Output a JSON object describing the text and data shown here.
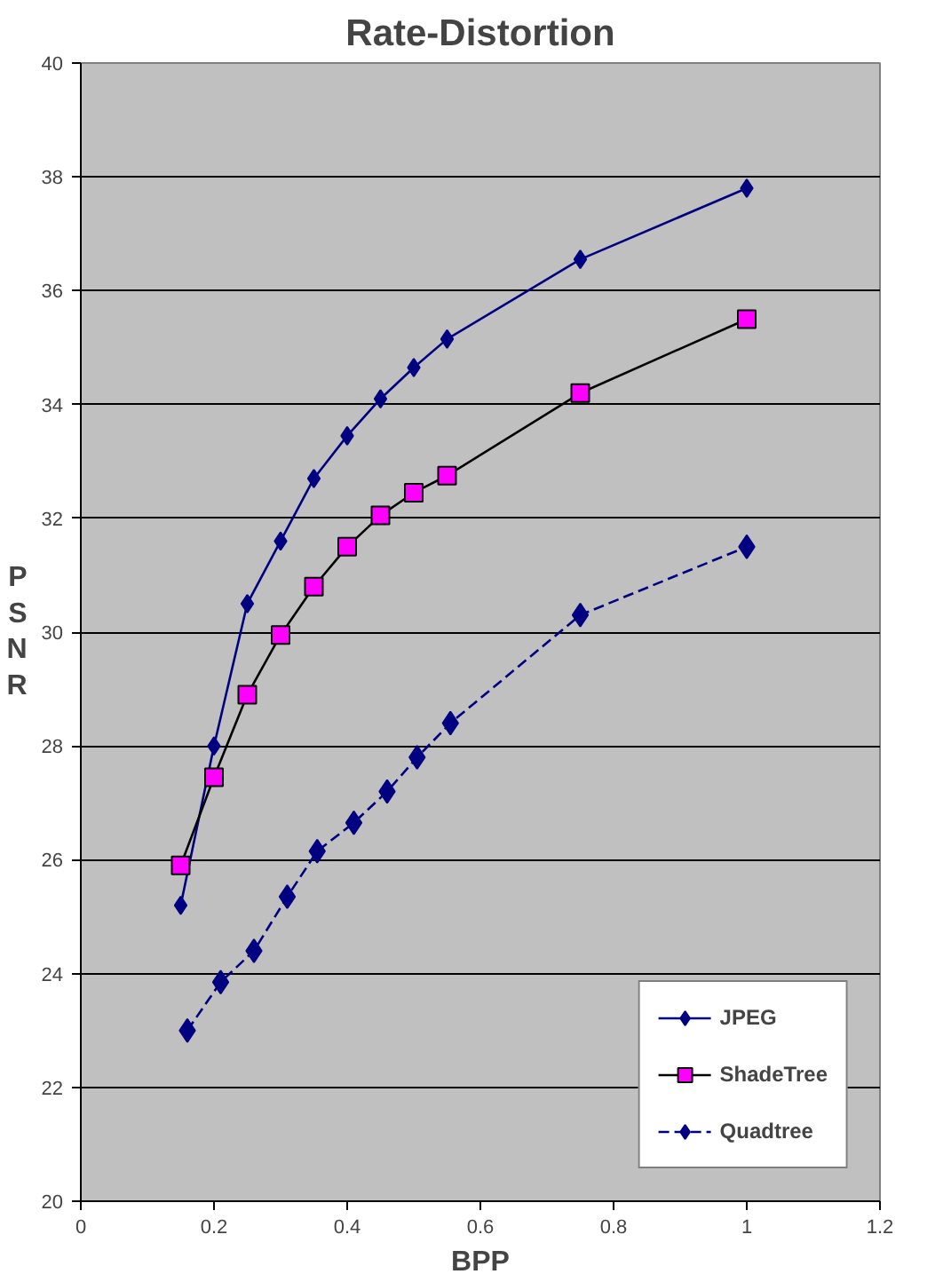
{
  "chart_data": {
    "type": "line",
    "title": "Rate-Distortion",
    "xlabel": "BPP",
    "ylabel": "PSNR",
    "xlim": [
      0,
      1.2
    ],
    "xticks": [
      0,
      0.2,
      0.4,
      0.6,
      0.8,
      1,
      1.2
    ],
    "ylim": [
      20,
      40
    ],
    "yticks": [
      20,
      22,
      24,
      26,
      28,
      30,
      32,
      34,
      36,
      38,
      40
    ],
    "grid": "y",
    "legend": "bottom right",
    "series": [
      {
        "name": "JPEG",
        "color": "#000080",
        "marker": "diamond",
        "line_style": "solid",
        "x": [
          0.15,
          0.2,
          0.25,
          0.3,
          0.35,
          0.4,
          0.45,
          0.5,
          0.55,
          0.75,
          1.0
        ],
        "values": [
          25.2,
          28.0,
          30.5,
          31.6,
          32.7,
          33.45,
          34.1,
          34.65,
          35.15,
          36.55,
          37.8
        ]
      },
      {
        "name": "ShadeTree",
        "color": "#ff00ff",
        "marker": "square",
        "line_style": "solid",
        "x": [
          0.15,
          0.2,
          0.25,
          0.3,
          0.35,
          0.4,
          0.45,
          0.5,
          0.55,
          0.75,
          1.0
        ],
        "values": [
          25.9,
          27.45,
          28.9,
          29.95,
          30.8,
          31.5,
          32.05,
          32.45,
          32.75,
          34.2,
          35.5
        ]
      },
      {
        "name": "Quadtree",
        "color": "#000080",
        "marker": "diamond",
        "line_style": "dashed",
        "x": [
          0.16,
          0.21,
          0.26,
          0.31,
          0.355,
          0.41,
          0.46,
          0.505,
          0.555,
          0.75,
          1.0
        ],
        "values": [
          23.0,
          23.85,
          24.4,
          25.35,
          26.15,
          26.65,
          27.2,
          27.8,
          28.4,
          30.3,
          31.5
        ]
      }
    ]
  }
}
